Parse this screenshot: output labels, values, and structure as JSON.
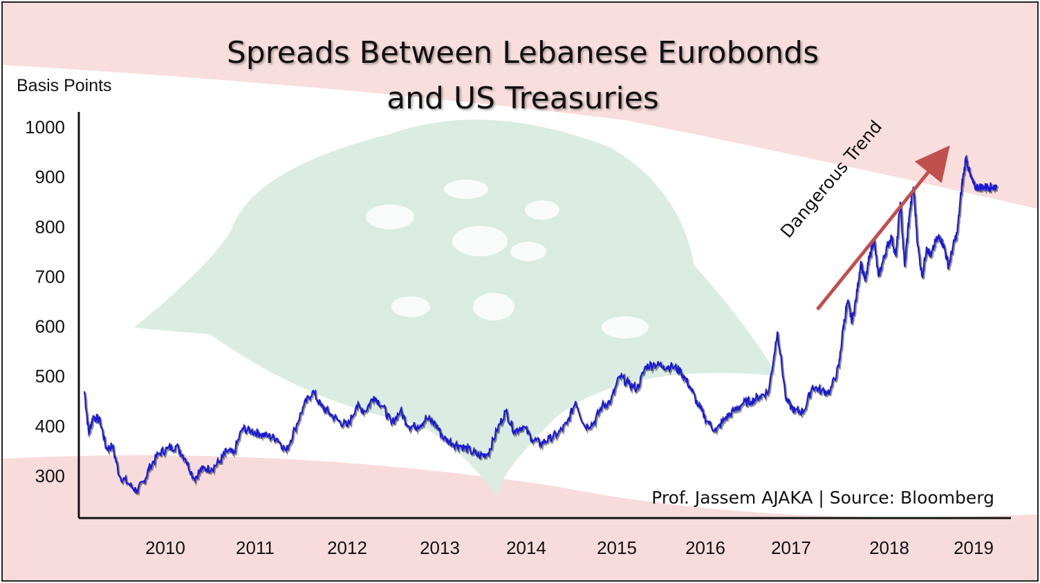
{
  "title_line1": "Spreads Between Lebanese Eurobonds",
  "title_line2": "and US Treasuries",
  "ylabel": "Basis Points",
  "source": "Prof. Jassem AJAKA | Source: Bloomberg",
  "annotation": "Dangerous Trend",
  "colors": {
    "line": "#1a1ad6",
    "line_shadow": "#333333",
    "arrow": "#c0504d",
    "flag_red": "#e8a0a0",
    "cedar_green": "#b8dcc4"
  },
  "chart_data": {
    "type": "line",
    "title": "Spreads Between Lebanese Eurobonds and US Treasuries",
    "ylabel": "Basis Points",
    "xlabel": "",
    "ylim": [
      220,
      1000
    ],
    "yticks": [
      300,
      400,
      500,
      600,
      700,
      800,
      900,
      1000
    ],
    "xticks": [
      "2010",
      "2011",
      "2012",
      "2013",
      "2014",
      "2015",
      "2016",
      "2017",
      "2018",
      "2019"
    ],
    "xlim": [
      2009.0,
      2019.42
    ],
    "grid": false,
    "annotations": [
      "Dangerous Trend"
    ],
    "series": [
      {
        "x": [
          2009.0,
          2009.05,
          2009.1,
          2009.18,
          2009.25,
          2009.32,
          2009.4,
          2009.5,
          2009.6,
          2009.68,
          2009.75,
          2009.85,
          2009.95,
          2010.05,
          2010.15,
          2010.25,
          2010.35,
          2010.45,
          2010.55,
          2010.62,
          2010.7,
          2010.8,
          2010.9,
          2011.0,
          2011.1,
          2011.2,
          2011.3,
          2011.4,
          2011.5,
          2011.6,
          2011.7,
          2011.8,
          2011.9,
          2012.0,
          2012.1,
          2012.2,
          2012.3,
          2012.4,
          2012.5,
          2012.6,
          2012.7,
          2012.8,
          2012.9,
          2013.0,
          2013.1,
          2013.2,
          2013.3,
          2013.4,
          2013.5,
          2013.6,
          2013.7,
          2013.8,
          2013.9,
          2014.0,
          2014.1,
          2014.2,
          2014.3,
          2014.4,
          2014.5,
          2014.6,
          2014.7,
          2014.8,
          2014.9,
          2015.0,
          2015.1,
          2015.2,
          2015.3,
          2015.4,
          2015.5,
          2015.6,
          2015.7,
          2015.8,
          2015.9,
          2016.0,
          2016.1,
          2016.2,
          2016.3,
          2016.4,
          2016.5,
          2016.6,
          2016.7,
          2016.8,
          2016.9,
          2017.0,
          2017.1,
          2017.2,
          2017.3,
          2017.4,
          2017.5,
          2017.6,
          2017.65,
          2017.7,
          2017.75,
          2017.8,
          2017.85,
          2017.9,
          2017.95,
          2018.0,
          2018.05,
          2018.1,
          2018.15,
          2018.2,
          2018.25,
          2018.3,
          2018.35,
          2018.4,
          2018.45,
          2018.5,
          2018.55,
          2018.6,
          2018.65,
          2018.7,
          2018.75,
          2018.8,
          2018.85,
          2018.9,
          2018.95,
          2019.0,
          2019.05,
          2019.1,
          2019.15,
          2019.2,
          2019.25,
          2019.3,
          2019.35,
          2019.4
        ],
        "y": [
          470,
          385,
          420,
          410,
          355,
          360,
          300,
          285,
          270,
          290,
          320,
          345,
          355,
          360,
          335,
          295,
          315,
          315,
          330,
          350,
          345,
          395,
          390,
          385,
          380,
          375,
          350,
          395,
          440,
          470,
          440,
          425,
          410,
          400,
          440,
          430,
          460,
          440,
          405,
          430,
          400,
          400,
          415,
          405,
          375,
          365,
          360,
          350,
          340,
          345,
          390,
          430,
          390,
          400,
          375,
          365,
          375,
          385,
          405,
          450,
          400,
          405,
          440,
          450,
          500,
          485,
          475,
          520,
          525,
          520,
          520,
          510,
          480,
          440,
          410,
          390,
          415,
          430,
          445,
          450,
          460,
          470,
          590,
          450,
          430,
          430,
          480,
          470,
          470,
          520,
          600,
          650,
          610,
          660,
          730,
          690,
          740,
          775,
          700,
          730,
          760,
          780,
          740,
          850,
          720,
          820,
          880,
          760,
          700,
          760,
          740,
          770,
          780,
          760,
          720,
          760,
          790,
          880,
          940,
          900,
          880,
          880,
          880,
          880,
          880,
          880
        ]
      }
    ]
  }
}
